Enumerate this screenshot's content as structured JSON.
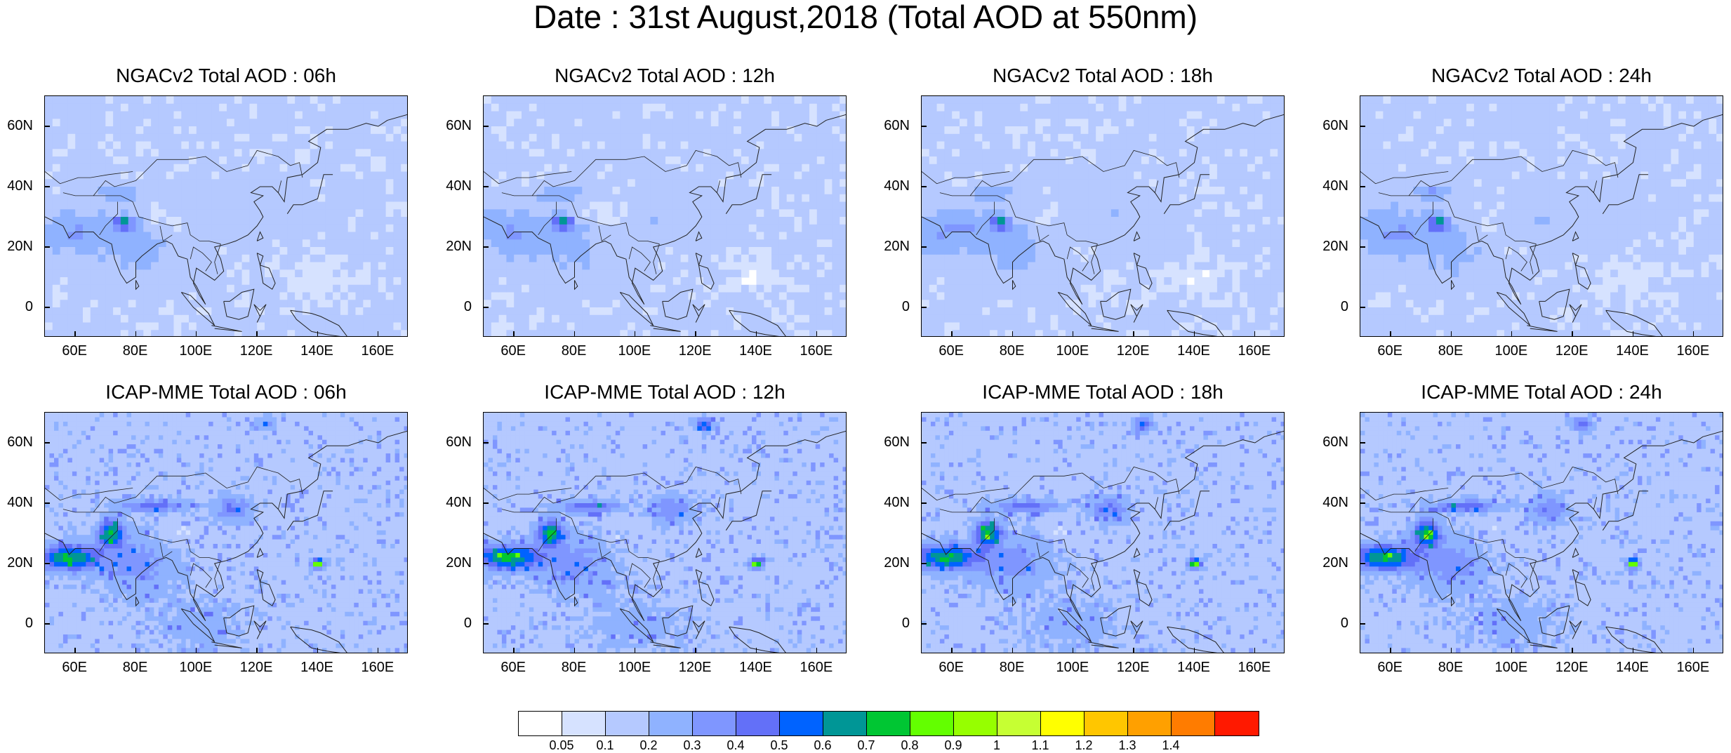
{
  "title": "Date : 31st August,2018 (Total AOD at 550nm)",
  "chart_data": [
    {
      "type": "heatmap",
      "title": "NGACv2 Total AOD : 06h",
      "variant": "ngac",
      "hour": 6,
      "xlim": [
        50,
        170
      ],
      "ylim": [
        -10,
        70
      ]
    },
    {
      "type": "heatmap",
      "title": "NGACv2 Total AOD : 12h",
      "variant": "ngac",
      "hour": 12,
      "xlim": [
        50,
        170
      ],
      "ylim": [
        -10,
        70
      ]
    },
    {
      "type": "heatmap",
      "title": "NGACv2 Total AOD : 18h",
      "variant": "ngac",
      "hour": 18,
      "xlim": [
        50,
        170
      ],
      "ylim": [
        -10,
        70
      ]
    },
    {
      "type": "heatmap",
      "title": "NGACv2 Total AOD : 24h",
      "variant": "ngac",
      "hour": 24,
      "xlim": [
        50,
        170
      ],
      "ylim": [
        -10,
        70
      ]
    },
    {
      "type": "heatmap",
      "title": "ICAP-MME Total AOD : 06h",
      "variant": "icap",
      "hour": 6,
      "xlim": [
        50,
        170
      ],
      "ylim": [
        -10,
        70
      ]
    },
    {
      "type": "heatmap",
      "title": "ICAP-MME Total AOD : 12h",
      "variant": "icap",
      "hour": 12,
      "xlim": [
        50,
        170
      ],
      "ylim": [
        -10,
        70
      ]
    },
    {
      "type": "heatmap",
      "title": "ICAP-MME Total AOD : 18h",
      "variant": "icap",
      "hour": 18,
      "xlim": [
        50,
        170
      ],
      "ylim": [
        -10,
        70
      ]
    },
    {
      "type": "heatmap",
      "title": "ICAP-MME Total AOD : 24h",
      "variant": "icap",
      "hour": 24,
      "xlim": [
        50,
        170
      ],
      "ylim": [
        -10,
        70
      ]
    }
  ],
  "y_ticks": [
    "60N",
    "40N",
    "20N",
    "0"
  ],
  "y_tick_values": [
    60,
    40,
    20,
    0
  ],
  "x_ticks": [
    "60E",
    "80E",
    "100E",
    "120E",
    "140E",
    "160E"
  ],
  "x_tick_values": [
    60,
    80,
    100,
    120,
    140,
    160
  ],
  "colorbar": {
    "levels": [
      "0.05",
      "0.1",
      "0.2",
      "0.3",
      "0.4",
      "0.5",
      "0.6",
      "0.7",
      "0.8",
      "0.9",
      "1",
      "1.1",
      "1.2",
      "1.3",
      "1.4"
    ],
    "colors": [
      "#ffffff",
      "#d6e2ff",
      "#b5c9ff",
      "#8fb2ff",
      "#7f96ff",
      "#6370f8",
      "#0063ff",
      "#009696",
      "#00c633",
      "#63ff00",
      "#96ff00",
      "#c6ff33",
      "#ffff00",
      "#ffc600",
      "#ffa000",
      "#ff7c00",
      "#ff1900"
    ]
  }
}
